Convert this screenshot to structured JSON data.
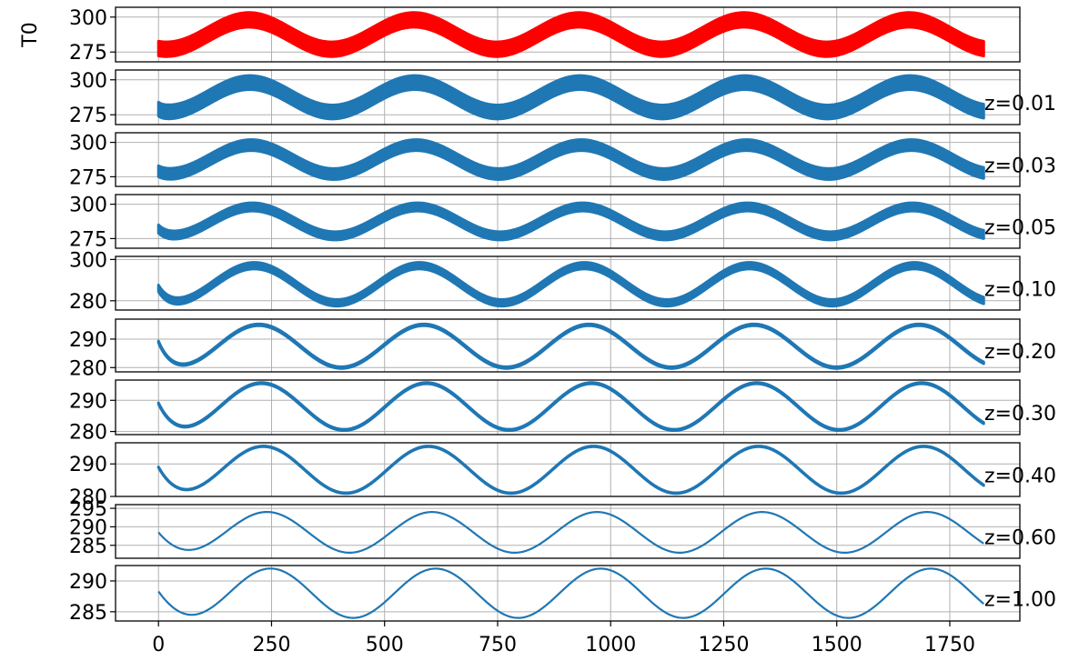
{
  "chart_data": {
    "type": "line",
    "x_ticks": [
      0,
      250,
      500,
      750,
      1000,
      1250,
      1500,
      1750
    ],
    "xlim": [
      -95,
      1905
    ],
    "x_end": 1825,
    "grid": true,
    "subplots": [
      {
        "ylabel": "T0",
        "label": "",
        "color": "#ff0000",
        "ylim": [
          268,
          307
        ],
        "yticks": [
          275,
          300
        ],
        "mean": 287.5,
        "amplitude": 10.5,
        "period": 365,
        "peak_x": 200,
        "band_width": 10.5,
        "initial_value": null,
        "decay": 0
      },
      {
        "ylabel": "",
        "label": "z=0.01",
        "color": "#1f77b4",
        "ylim": [
          268,
          307
        ],
        "yticks": [
          275,
          300
        ],
        "mean": 287.5,
        "amplitude": 10.5,
        "period": 365,
        "peak_x": 202,
        "band_width": 10,
        "initial_value": 279,
        "decay": 8
      },
      {
        "ylabel": "",
        "label": "z=0.03",
        "color": "#1f77b4",
        "ylim": [
          268,
          307
        ],
        "yticks": [
          275,
          300
        ],
        "mean": 287.5,
        "amplitude": 10.5,
        "period": 365,
        "peak_x": 205,
        "band_width": 8,
        "initial_value": 279,
        "decay": 12
      },
      {
        "ylabel": "",
        "label": "z=0.05",
        "color": "#1f77b4",
        "ylim": [
          268,
          307
        ],
        "yticks": [
          275,
          300
        ],
        "mean": 287.5,
        "amplitude": 10.5,
        "period": 365,
        "peak_x": 208,
        "band_width": 6,
        "initial_value": 282,
        "decay": 16
      },
      {
        "ylabel": "",
        "label": "z=0.10",
        "color": "#1f77b4",
        "ylim": [
          275.5,
          301.5
        ],
        "yticks": [
          280,
          300
        ],
        "mean": 288,
        "amplitude": 9,
        "period": 365,
        "peak_x": 212,
        "band_width": 3.2,
        "initial_value": 286,
        "decay": 20
      },
      {
        "ylabel": "",
        "label": "z=0.20",
        "color": "#1f77b4",
        "ylim": [
          278.5,
          297
        ],
        "yticks": [
          280,
          290
        ],
        "mean": 287.5,
        "amplitude": 7.5,
        "period": 365,
        "peak_x": 222,
        "band_width": 0.6,
        "initial_value": 289,
        "decay": 25
      },
      {
        "ylabel": "",
        "label": "z=0.30",
        "color": "#1f77b4",
        "ylim": [
          279,
          296.5
        ],
        "yticks": [
          280,
          290
        ],
        "mean": 288,
        "amplitude": 7.5,
        "period": 365,
        "peak_x": 228,
        "band_width": 0.4,
        "initial_value": 289,
        "decay": 30
      },
      {
        "ylabel": "",
        "label": "z=0.40",
        "color": "#1f77b4",
        "ylim": [
          280,
          296.5
        ],
        "yticks": [
          280,
          290
        ],
        "mean": 288.2,
        "amplitude": 7.2,
        "period": 365,
        "peak_x": 232,
        "band_width": 0.2,
        "initial_value": 289,
        "decay": 35
      },
      {
        "ylabel": "",
        "label": "z=0.60",
        "color": "#1f77b4",
        "ylim": [
          281.5,
          296
        ],
        "yticks": [
          285,
          290,
          295
        ],
        "mean": 288.5,
        "amplitude": 5.5,
        "period": 365,
        "peak_x": 240,
        "band_width": 0,
        "initial_value": 288.5,
        "decay": 45
      },
      {
        "ylabel": "",
        "label": "z=1.00",
        "color": "#1f77b4",
        "ylim": [
          283.5,
          292.5
        ],
        "yticks": [
          285,
          290
        ],
        "mean": 288,
        "amplitude": 4,
        "period": 365,
        "peak_x": 248,
        "band_width": 0,
        "initial_value": 288.3,
        "decay": 50
      }
    ]
  }
}
